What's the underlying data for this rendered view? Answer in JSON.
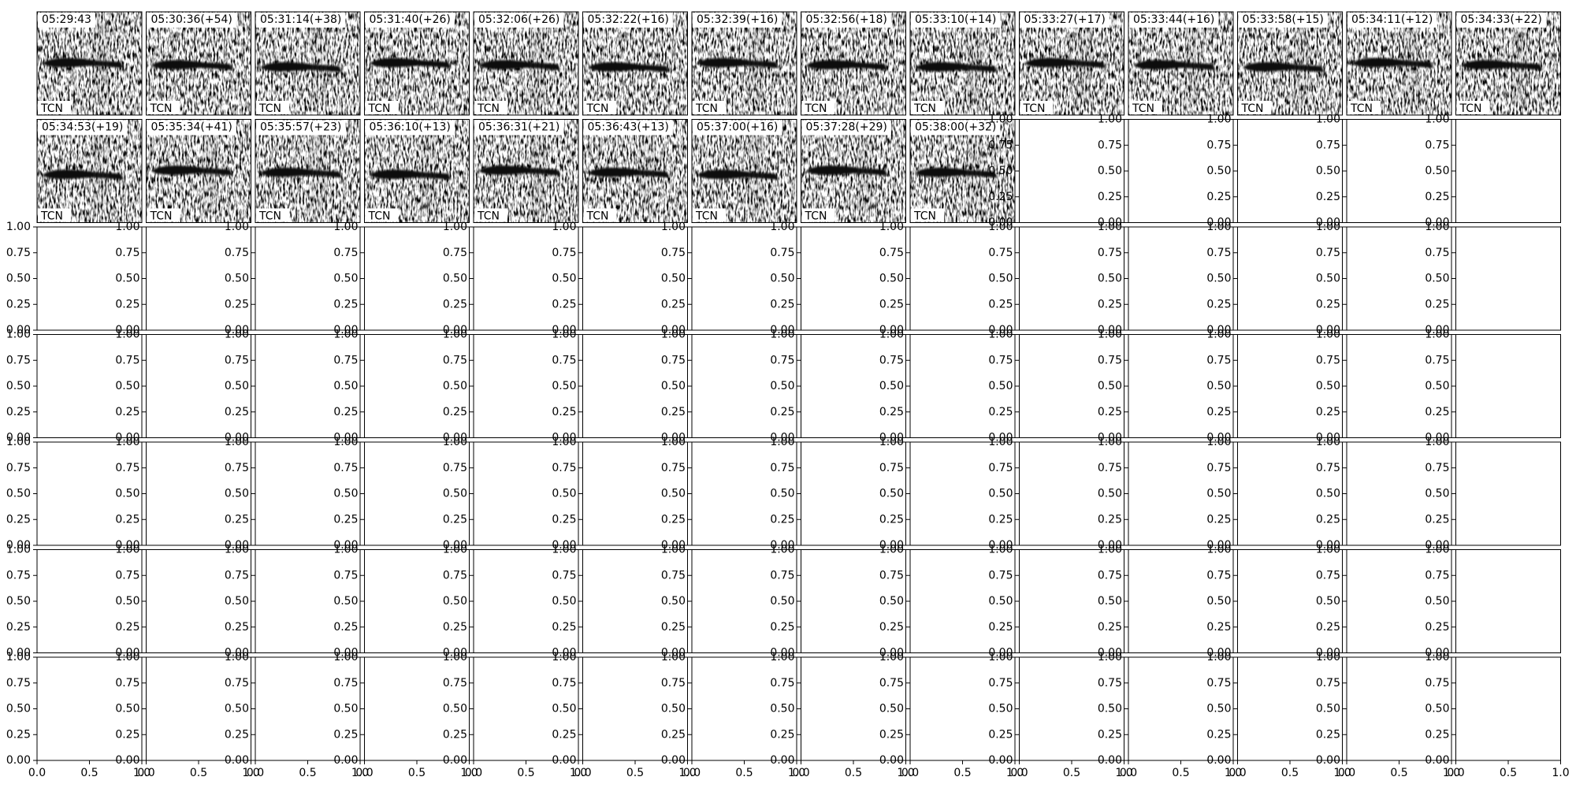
{
  "panels": [
    {
      "time": "05:29:43",
      "tag": "TCN"
    },
    {
      "time": "05:30:36(+54)",
      "tag": "TCN"
    },
    {
      "time": "05:31:14(+38)",
      "tag": "TCN"
    },
    {
      "time": "05:31:40(+26)",
      "tag": "TCN"
    },
    {
      "time": "05:32:06(+26)",
      "tag": "TCN"
    },
    {
      "time": "05:32:22(+16)",
      "tag": "TCN"
    },
    {
      "time": "05:32:39(+16)",
      "tag": "TCN"
    },
    {
      "time": "05:32:56(+18)",
      "tag": "TCN"
    },
    {
      "time": "05:33:10(+14)",
      "tag": "TCN"
    },
    {
      "time": "05:33:27(+17)",
      "tag": "TCN"
    },
    {
      "time": "05:33:44(+16)",
      "tag": "TCN"
    },
    {
      "time": "05:33:58(+15)",
      "tag": "TCN"
    },
    {
      "time": "05:34:11(+12)",
      "tag": "TCN"
    },
    {
      "time": "05:34:33(+22)",
      "tag": "TCN"
    },
    {
      "time": "05:34:53(+19)",
      "tag": "TCN"
    },
    {
      "time": "05:35:34(+41)",
      "tag": "TCN"
    },
    {
      "time": "05:35:57(+23)",
      "tag": "TCN"
    },
    {
      "time": "05:36:10(+13)",
      "tag": "TCN"
    },
    {
      "time": "05:36:31(+21)",
      "tag": "TCN"
    },
    {
      "time": "05:36:43(+13)",
      "tag": "TCN"
    },
    {
      "time": "05:37:00(+16)",
      "tag": "TCN"
    },
    {
      "time": "05:37:28(+29)",
      "tag": "TCN"
    },
    {
      "time": "05:38:00(+32)",
      "tag": "TCN"
    }
  ],
  "empty_axes": {
    "xlim": [
      0,
      1
    ],
    "ylim": [
      0,
      1
    ],
    "yticks": [
      {
        "value": 0,
        "label": "0.00"
      },
      {
        "value": 0.25,
        "label": "0.25"
      },
      {
        "value": 0.5,
        "label": "0.50"
      },
      {
        "value": 0.75,
        "label": "0.75"
      },
      {
        "value": 1,
        "label": "1.00"
      }
    ],
    "xticks": [
      {
        "value": 0,
        "label": "0.0"
      },
      {
        "value": 0.5,
        "label": "0.5"
      },
      {
        "value": 1,
        "label": "1.0"
      }
    ]
  }
}
